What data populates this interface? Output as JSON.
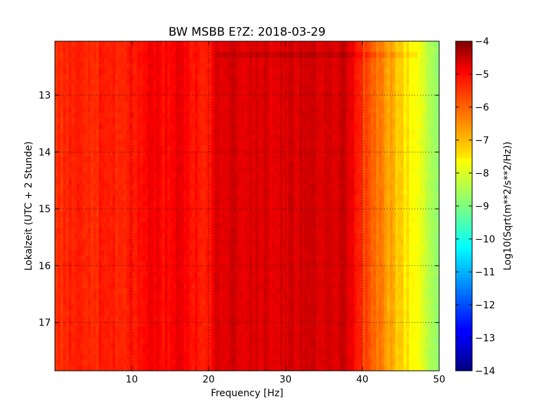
{
  "chart_data": {
    "type": "heatmap",
    "title": "BW MSBB E?Z: 2018-03-29",
    "xlabel": "Frequency [Hz]",
    "ylabel": "Lokalzeit (UTC + 2 Stunde)",
    "xlim": [
      0,
      50
    ],
    "ylim": [
      17.85,
      12.05
    ],
    "x_ticks": [
      10,
      20,
      30,
      40,
      50
    ],
    "x_tick_labels": [
      "10",
      "20",
      "30",
      "40",
      "50"
    ],
    "y_ticks": [
      13,
      14,
      15,
      16,
      17
    ],
    "y_tick_labels": [
      "13",
      "14",
      "15",
      "16",
      "17"
    ],
    "grid": true,
    "colorbar": {
      "label": "Log10(Sqrt(m**2/s**2/Hz))",
      "range": [
        -14,
        -4
      ],
      "ticks": [
        -4,
        -5,
        -6,
        -7,
        -8,
        -9,
        -10,
        -11,
        -12,
        -13,
        -14
      ],
      "tick_labels": [
        "−4",
        "−5",
        "−6",
        "−7",
        "−8",
        "−9",
        "−10",
        "−11",
        "−12",
        "−13",
        "−14"
      ],
      "colormap": "jet"
    },
    "frequency_profile": {
      "freq_hz": [
        0,
        5,
        10,
        12,
        15,
        16,
        18,
        20,
        21,
        23,
        25,
        26.5,
        28,
        30,
        33,
        35,
        38,
        40,
        42,
        44,
        46,
        48,
        50
      ],
      "value": [
        -5.6,
        -5.6,
        -5.5,
        -5.1,
        -5.4,
        -4.9,
        -5.4,
        -5.4,
        -5.0,
        -4.9,
        -5.0,
        -4.8,
        -5.0,
        -4.8,
        -4.9,
        -4.9,
        -4.8,
        -5.8,
        -6.4,
        -7.0,
        -7.6,
        -8.2,
        -8.8
      ]
    }
  },
  "colors": {
    "accent": "#ff3300",
    "background": "#ffffff"
  }
}
